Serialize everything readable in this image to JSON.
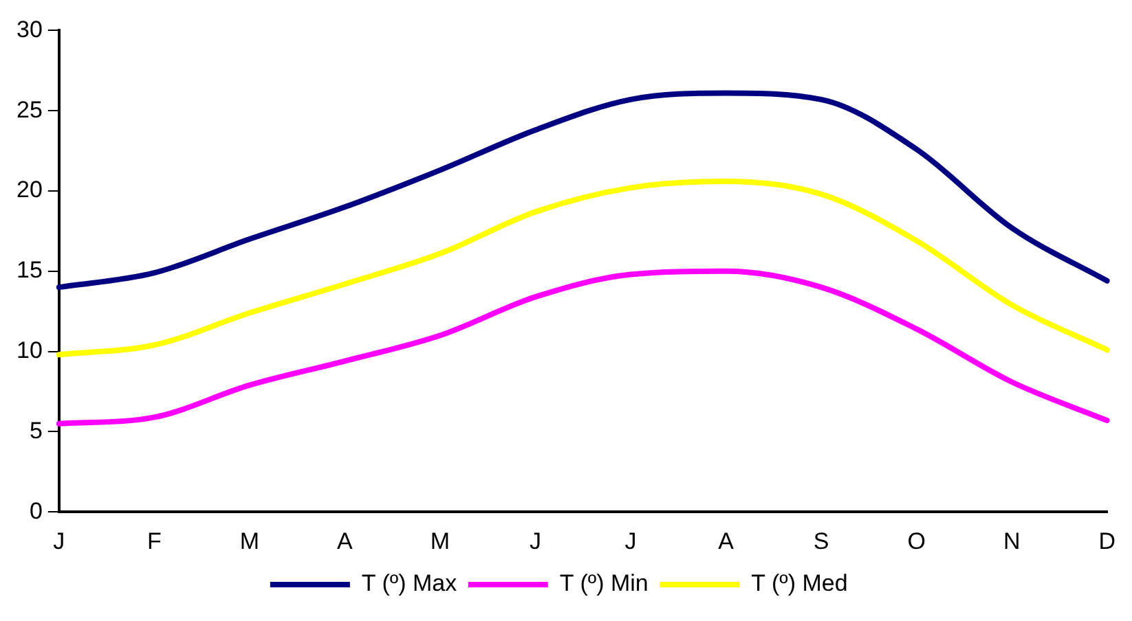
{
  "chart_data": {
    "type": "line",
    "categories": [
      "J",
      "F",
      "M",
      "A",
      "M",
      "J",
      "J",
      "A",
      "S",
      "O",
      "N",
      "D"
    ],
    "series": [
      {
        "name": "T (º) Max",
        "color": "#000080",
        "values": [
          14.0,
          14.9,
          17.0,
          19.0,
          21.3,
          23.8,
          25.7,
          26.1,
          25.7,
          22.6,
          17.7,
          14.4
        ]
      },
      {
        "name": "T (º) Min",
        "color": "#ff00ff",
        "values": [
          5.5,
          5.9,
          7.9,
          9.4,
          11.0,
          13.4,
          14.8,
          15.0,
          14.0,
          11.4,
          8.1,
          5.7
        ]
      },
      {
        "name": "T (º) Med",
        "color": "#ffff00",
        "values": [
          9.8,
          10.4,
          12.4,
          14.2,
          16.1,
          18.7,
          20.2,
          20.6,
          19.8,
          16.9,
          12.9,
          10.1
        ]
      }
    ],
    "ylim": [
      0,
      30
    ],
    "yticks": [
      0,
      5,
      10,
      15,
      20,
      25,
      30
    ],
    "grid": false,
    "legend": "bottom",
    "marker": "none",
    "line_style": "solid"
  }
}
